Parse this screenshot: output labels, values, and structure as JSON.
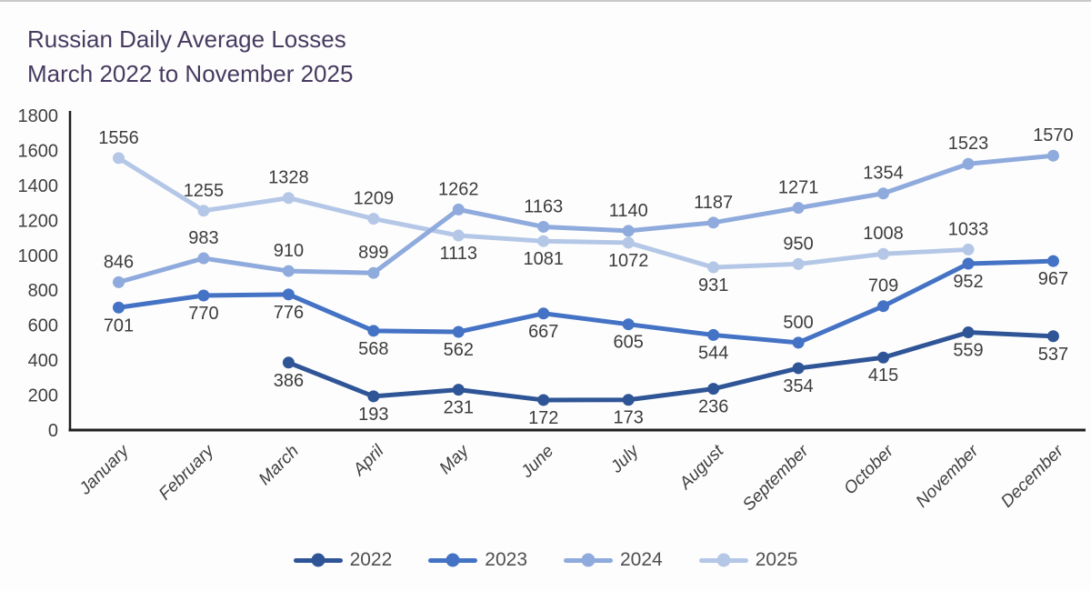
{
  "title": {
    "line1": "Russian Daily Average Losses",
    "line2": "March 2022 to November 2025",
    "color": "#473b60"
  },
  "chart_data": {
    "type": "line",
    "title": "Russian Daily Average Losses March 2022 to November 2025",
    "categories": [
      "January",
      "February",
      "March",
      "April",
      "May",
      "June",
      "July",
      "August",
      "September",
      "October",
      "November",
      "December"
    ],
    "series": [
      {
        "name": "2022",
        "color": "#2F5597",
        "values": [
          null,
          null,
          386,
          193,
          231,
          172,
          173,
          236,
          354,
          415,
          559,
          537
        ],
        "label_sides": [
          null,
          null,
          "below",
          "below",
          "below",
          "below",
          "below",
          "below",
          "below",
          "below",
          "below",
          "below"
        ]
      },
      {
        "name": "2023",
        "color": "#4472C4",
        "values": [
          701,
          770,
          776,
          568,
          562,
          667,
          605,
          544,
          500,
          709,
          952,
          967
        ],
        "label_sides": [
          "below",
          "below",
          "below",
          "below",
          "below",
          "below",
          "below",
          "below",
          "above",
          "above",
          "below",
          "below"
        ]
      },
      {
        "name": "2024",
        "color": "#8FAADC",
        "values": [
          846,
          983,
          910,
          899,
          1262,
          1163,
          1140,
          1187,
          1271,
          1354,
          1523,
          1570
        ],
        "label_sides": [
          "above",
          "above",
          "above",
          "above",
          "above",
          "above",
          "above",
          "above",
          "above",
          "above",
          "above",
          "above"
        ]
      },
      {
        "name": "2025",
        "color": "#B4C7E7",
        "values": [
          1556,
          1255,
          1328,
          1209,
          1113,
          1081,
          1072,
          931,
          950,
          1008,
          1033,
          null
        ],
        "label_sides": [
          "above",
          "above",
          "above",
          "above",
          "below",
          "below",
          "below",
          "below",
          "above",
          "above",
          "above",
          null
        ]
      }
    ],
    "ylim": [
      0,
      1800
    ],
    "ytick_step": 200,
    "grid": false,
    "legend_position": "bottom",
    "axis_color": "#1f1f1f",
    "tick_label_color": "#404040",
    "data_label_color": "#3d3d3d",
    "month_label_color": "#404040"
  },
  "legend": {
    "items": [
      {
        "label": "2022",
        "color": "#2F5597"
      },
      {
        "label": "2023",
        "color": "#4472C4"
      },
      {
        "label": "2024",
        "color": "#8FAADC"
      },
      {
        "label": "2025",
        "color": "#B4C7E7"
      }
    ]
  }
}
